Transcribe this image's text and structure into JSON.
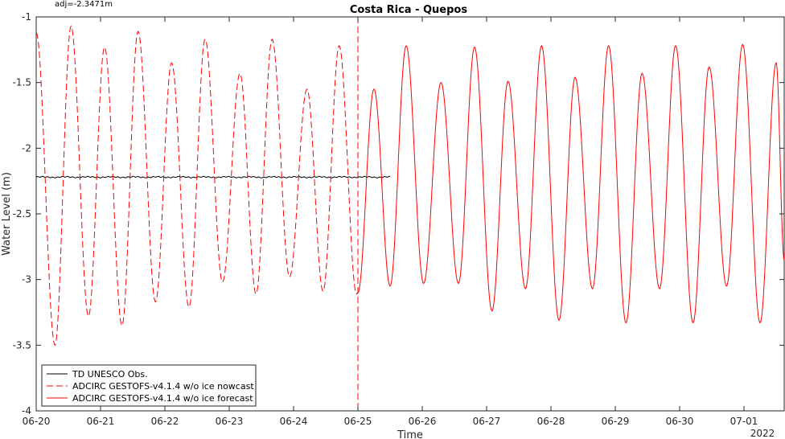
{
  "chart_data": {
    "type": "line",
    "title": "Costa Rica - Quepos",
    "annotation": "adj=-2.3471m",
    "xlabel": "Time",
    "ylabel": "Water Level (m)",
    "year_label": "2022",
    "xlim": [
      "2022-06-20 00:00",
      "2022-07-01 15:00"
    ],
    "ylim": [
      -4,
      -1
    ],
    "x_ticks": [
      "06-20",
      "06-21",
      "06-22",
      "06-23",
      "06-24",
      "06-25",
      "06-26",
      "06-27",
      "06-28",
      "06-29",
      "06-30",
      "07-01"
    ],
    "y_ticks": [
      -4,
      -3.5,
      -3,
      -2.5,
      -2,
      -1.5,
      -1
    ],
    "y_tick_labels": [
      "-4",
      "-3.5",
      "-3",
      "-2.5",
      "-2",
      "-1.5",
      "-1"
    ],
    "forecast_start": "2022-06-25 00:00",
    "grid": false,
    "legend_position": "bottom-left",
    "series": [
      {
        "name": "TD UNESCO Obs.",
        "color": "#000000",
        "style": "solid",
        "x": [
          "2022-06-20 00:00",
          "2022-06-25 12:00"
        ],
        "y": [
          -2.22,
          -2.22
        ]
      },
      {
        "name": "ADCIRC GESTOFS-v4.1.4 w/o ice nowcast",
        "color": "#ff0000",
        "style": "dashed",
        "extrema": [
          [
            "2022-06-20 00:00",
            -1.12
          ],
          [
            "2022-06-20 07:00",
            -3.5
          ],
          [
            "2022-06-20 13:00",
            -1.07
          ],
          [
            "2022-06-20 19:30",
            -3.28
          ],
          [
            "2022-06-21 01:30",
            -1.23
          ],
          [
            "2022-06-21 08:00",
            -3.35
          ],
          [
            "2022-06-21 14:00",
            -1.11
          ],
          [
            "2022-06-21 20:30",
            -3.17
          ],
          [
            "2022-06-22 02:30",
            -1.35
          ],
          [
            "2022-06-22 09:00",
            -3.21
          ],
          [
            "2022-06-22 15:00",
            -1.17
          ],
          [
            "2022-06-22 21:30",
            -3.02
          ],
          [
            "2022-06-23 04:00",
            -1.43
          ],
          [
            "2022-06-23 10:00",
            -3.11
          ],
          [
            "2022-06-23 16:00",
            -1.17
          ],
          [
            "2022-06-23 22:30",
            -2.98
          ],
          [
            "2022-06-24 05:00",
            -1.55
          ],
          [
            "2022-06-24 11:00",
            -3.09
          ],
          [
            "2022-06-24 17:00",
            -1.22
          ],
          [
            "2022-06-24 23:30",
            -3.11
          ],
          [
            "2022-06-25 00:00",
            -3.1
          ]
        ]
      },
      {
        "name": "ADCIRC GESTOFS-v4.1.4 w/o ice forecast",
        "color": "#ff0000",
        "style": "solid",
        "extrema": [
          [
            "2022-06-25 00:00",
            -3.1
          ],
          [
            "2022-06-25 06:00",
            -1.55
          ],
          [
            "2022-06-25 12:00",
            -3.05
          ],
          [
            "2022-06-25 18:00",
            -1.22
          ],
          [
            "2022-06-26 00:30",
            -3.03
          ],
          [
            "2022-06-26 07:00",
            -1.5
          ],
          [
            "2022-06-26 13:30",
            -3.03
          ],
          [
            "2022-06-26 19:30",
            -1.23
          ],
          [
            "2022-06-27 02:00",
            -3.24
          ],
          [
            "2022-06-27 08:00",
            -1.49
          ],
          [
            "2022-06-27 14:30",
            -3.07
          ],
          [
            "2022-06-27 20:30",
            -1.22
          ],
          [
            "2022-06-28 03:00",
            -3.31
          ],
          [
            "2022-06-28 09:00",
            -1.46
          ],
          [
            "2022-06-28 15:30",
            -3.07
          ],
          [
            "2022-06-28 21:30",
            -1.22
          ],
          [
            "2022-06-29 04:00",
            -3.33
          ],
          [
            "2022-06-29 10:00",
            -1.43
          ],
          [
            "2022-06-29 16:30",
            -3.07
          ],
          [
            "2022-06-29 22:30",
            -1.22
          ],
          [
            "2022-06-30 05:00",
            -3.33
          ],
          [
            "2022-06-30 11:00",
            -1.38
          ],
          [
            "2022-06-30 17:30",
            -3.05
          ],
          [
            "2022-06-30 23:30",
            -1.21
          ],
          [
            "2022-07-01 06:00",
            -3.33
          ],
          [
            "2022-07-01 12:00",
            -1.35
          ],
          [
            "2022-07-01 15:00",
            -2.85
          ]
        ]
      }
    ]
  }
}
